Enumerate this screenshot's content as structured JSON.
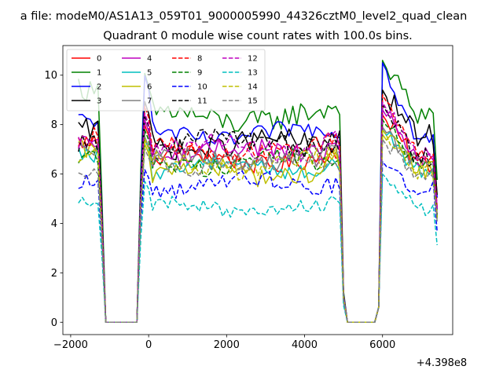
{
  "suptitle": "a file: modeM0/AS1A13_059T01_9000005990_44326cztM0_level2_quad_clean",
  "title": "Quadrant 0 module wise count rates with 100.0s bins.",
  "offset_label": "+4.398e8",
  "chart_data": {
    "type": "line",
    "title": "Quadrant 0 module wise count rates with 100.0s bins.",
    "xlabel": "",
    "ylabel": "",
    "x_offset": "+4.398e8",
    "xlim": [
      -2200,
      7800
    ],
    "ylim": [
      -0.5,
      11.2
    ],
    "xticks": [
      -2000,
      0,
      2000,
      4000,
      6000
    ],
    "xtick_labels": [
      "−2000",
      "0",
      "2000",
      "4000",
      "6000"
    ],
    "yticks": [
      0,
      2,
      4,
      6,
      8,
      10
    ],
    "ytick_labels": [
      "0",
      "2",
      "4",
      "6",
      "8",
      "10"
    ],
    "grid": false,
    "legend_position": "top-left",
    "series": [
      {
        "name": "0",
        "color": "#ff0000",
        "dash": "solid",
        "base1": 7.3,
        "base2": 6.6,
        "base3": 7.3,
        "noise": 0.4,
        "peak": 8.4
      },
      {
        "name": "1",
        "color": "#008000",
        "dash": "solid",
        "base1": 9.3,
        "base2": 8.3,
        "base3": 9.6,
        "noise": 0.5,
        "peak": 10.6
      },
      {
        "name": "2",
        "color": "#0000ff",
        "dash": "solid",
        "base1": 8.2,
        "base2": 7.6,
        "base3": 8.4,
        "noise": 0.35,
        "peak": 10.5
      },
      {
        "name": "3",
        "color": "#000000",
        "dash": "solid",
        "base1": 7.8,
        "base2": 7.2,
        "base3": 8.6,
        "noise": 0.45,
        "peak": 9.4
      },
      {
        "name": "4",
        "color": "#bf00bf",
        "dash": "solid",
        "base1": 7.2,
        "base2": 6.9,
        "base3": 7.6,
        "noise": 0.4,
        "peak": 8.6
      },
      {
        "name": "5",
        "color": "#00bfbf",
        "dash": "solid",
        "base1": 6.8,
        "base2": 6.3,
        "base3": 7.0,
        "noise": 0.35,
        "peak": 7.8
      },
      {
        "name": "6",
        "color": "#bfbf00",
        "dash": "solid",
        "base1": 6.9,
        "base2": 6.1,
        "base3": 7.0,
        "noise": 0.45,
        "peak": 7.6
      },
      {
        "name": "7",
        "color": "#808080",
        "dash": "solid",
        "base1": 6.9,
        "base2": 6.7,
        "base3": 7.2,
        "noise": 0.4,
        "peak": 7.9
      },
      {
        "name": "8",
        "color": "#ff0000",
        "dash": "dashed",
        "base1": 7.5,
        "base2": 7.0,
        "base3": 7.8,
        "noise": 0.4,
        "peak": 9.2
      },
      {
        "name": "9",
        "color": "#008000",
        "dash": "dashed",
        "base1": 6.8,
        "base2": 6.5,
        "base3": 7.1,
        "noise": 0.4,
        "peak": 8.2
      },
      {
        "name": "10",
        "color": "#0000ff",
        "dash": "dashed",
        "base1": 5.7,
        "base2": 5.6,
        "base3": 6.1,
        "noise": 0.35,
        "peak": 6.5
      },
      {
        "name": "11",
        "color": "#000000",
        "dash": "dashed",
        "base1": 7.2,
        "base2": 7.3,
        "base3": 7.6,
        "noise": 0.4,
        "peak": 8.8
      },
      {
        "name": "12",
        "color": "#bf00bf",
        "dash": "dashed",
        "base1": 7.3,
        "base2": 7.1,
        "base3": 7.6,
        "noise": 0.4,
        "peak": 8.9
      },
      {
        "name": "13",
        "color": "#00bfbf",
        "dash": "dashed",
        "base1": 5.0,
        "base2": 4.6,
        "base3": 5.2,
        "noise": 0.3,
        "peak": 6.0
      },
      {
        "name": "14",
        "color": "#bfbf00",
        "dash": "dashed",
        "base1": 6.7,
        "base2": 6.4,
        "base3": 7.0,
        "noise": 0.4,
        "peak": 7.8
      },
      {
        "name": "15",
        "color": "#808080",
        "dash": "dashed",
        "base1": 6.2,
        "base2": 6.4,
        "base3": 6.8,
        "noise": 0.35,
        "peak": 7.4
      }
    ],
    "segments": [
      {
        "on_start": -1800,
        "on_end": -1200,
        "off_end": -300
      },
      {
        "on_start": -200,
        "on_end": 4900,
        "off_end": 5900
      },
      {
        "on_start": 6000,
        "on_end": 7400
      }
    ],
    "bin_seconds": 100
  }
}
